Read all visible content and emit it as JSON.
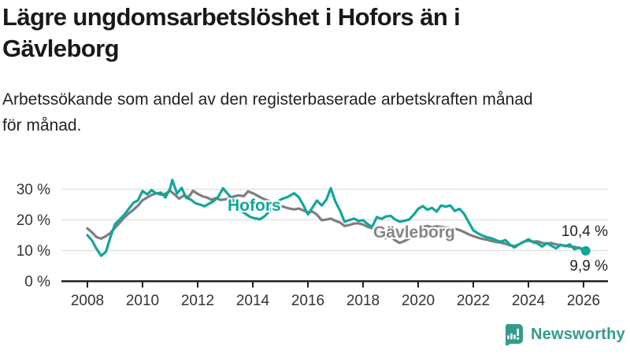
{
  "header": {
    "title": "Lägre ungdomsarbetslöshet i Hofors än i\nGävleborg",
    "subtitle": "Arbetssökande som andel av den registerbaserade arbetskraften månad\nför månad."
  },
  "chart_data": {
    "type": "line",
    "title": "Lägre ungdomsarbetslöshet i Hofors än i Gävleborg",
    "xlabel": "",
    "ylabel": "Arbetssökande som andel av den registerbaserade arbetskraften",
    "unit": "%",
    "grid": true,
    "x_start": 2008,
    "x_end": 2026.1,
    "ylim": [
      0,
      35
    ],
    "y_ticks": [
      0,
      10,
      20,
      30
    ],
    "y_tick_suffix": " %",
    "x_ticks": [
      2008,
      2010,
      2012,
      2014,
      2016,
      2018,
      2020,
      2022,
      2024,
      2026
    ],
    "series": [
      {
        "name": "Gävleborg",
        "color": "#7e7e7e",
        "end_dot": false,
        "last_value_label": "10,4 %",
        "points": [
          [
            2008.0,
            17.2
          ],
          [
            2008.17,
            15.9
          ],
          [
            2008.33,
            14.4
          ],
          [
            2008.5,
            13.9
          ],
          [
            2008.67,
            14.7
          ],
          [
            2008.83,
            15.7
          ],
          [
            2009.0,
            17.4
          ],
          [
            2009.17,
            19.1
          ],
          [
            2009.33,
            20.7
          ],
          [
            2009.5,
            22.1
          ],
          [
            2009.67,
            23.3
          ],
          [
            2009.83,
            24.6
          ],
          [
            2010.0,
            26.4
          ],
          [
            2010.17,
            27.3
          ],
          [
            2010.33,
            28.1
          ],
          [
            2010.5,
            28.7
          ],
          [
            2010.67,
            28.2
          ],
          [
            2010.83,
            28.5
          ],
          [
            2011.0,
            29.5
          ],
          [
            2011.17,
            28.2
          ],
          [
            2011.33,
            26.9
          ],
          [
            2011.5,
            28.0
          ],
          [
            2011.67,
            27.4
          ],
          [
            2011.83,
            29.5
          ],
          [
            2012.0,
            28.5
          ],
          [
            2012.17,
            27.7
          ],
          [
            2012.33,
            27.3
          ],
          [
            2012.5,
            26.6
          ],
          [
            2012.67,
            27.1
          ],
          [
            2012.83,
            26.5
          ],
          [
            2013.0,
            26.7
          ],
          [
            2013.17,
            27.1
          ],
          [
            2013.33,
            27.7
          ],
          [
            2013.5,
            28.0
          ],
          [
            2013.67,
            27.7
          ],
          [
            2013.83,
            29.3
          ],
          [
            2014.0,
            28.7
          ],
          [
            2014.17,
            27.9
          ],
          [
            2014.33,
            27.1
          ],
          [
            2014.5,
            26.5
          ],
          [
            2014.67,
            25.9
          ],
          [
            2014.83,
            25.3
          ],
          [
            2015.0,
            24.6
          ],
          [
            2015.17,
            24.1
          ],
          [
            2015.33,
            23.7
          ],
          [
            2015.5,
            23.4
          ],
          [
            2015.67,
            23.7
          ],
          [
            2015.83,
            23.1
          ],
          [
            2016.0,
            22.4
          ],
          [
            2016.17,
            22.7
          ],
          [
            2016.33,
            21.7
          ],
          [
            2016.5,
            19.9
          ],
          [
            2016.67,
            20.1
          ],
          [
            2016.83,
            20.4
          ],
          [
            2017.0,
            19.7
          ],
          [
            2017.17,
            19.1
          ],
          [
            2017.33,
            18.0
          ],
          [
            2017.5,
            18.3
          ],
          [
            2017.67,
            18.8
          ],
          [
            2017.83,
            18.9
          ],
          [
            2018.0,
            18.5
          ],
          [
            2018.17,
            17.7
          ],
          [
            2018.33,
            17.3
          ],
          [
            2018.5,
            16.3
          ],
          [
            2018.67,
            14.9
          ],
          [
            2018.83,
            14.0
          ],
          [
            2019.0,
            14.5
          ],
          [
            2019.17,
            13.3
          ],
          [
            2019.33,
            12.5
          ],
          [
            2019.5,
            13.1
          ],
          [
            2019.67,
            13.9
          ],
          [
            2019.83,
            15.3
          ],
          [
            2020.0,
            16.7
          ],
          [
            2020.17,
            17.7
          ],
          [
            2020.33,
            18.0
          ],
          [
            2020.5,
            17.6
          ],
          [
            2020.67,
            17.9
          ],
          [
            2020.83,
            17.7
          ],
          [
            2021.0,
            17.5
          ],
          [
            2021.17,
            17.3
          ],
          [
            2021.33,
            17.1
          ],
          [
            2021.5,
            16.7
          ],
          [
            2021.67,
            16.0
          ],
          [
            2021.83,
            15.3
          ],
          [
            2022.0,
            14.7
          ],
          [
            2022.17,
            14.2
          ],
          [
            2022.33,
            13.8
          ],
          [
            2022.5,
            13.5
          ],
          [
            2022.67,
            13.1
          ],
          [
            2022.83,
            12.8
          ],
          [
            2023.0,
            12.6
          ],
          [
            2023.17,
            12.2
          ],
          [
            2023.33,
            11.7
          ],
          [
            2023.5,
            11.5
          ],
          [
            2023.67,
            12.1
          ],
          [
            2023.83,
            12.9
          ],
          [
            2024.0,
            13.2
          ],
          [
            2024.17,
            12.9
          ],
          [
            2024.33,
            13.0
          ],
          [
            2024.5,
            12.5
          ],
          [
            2024.67,
            12.3
          ],
          [
            2024.83,
            12.5
          ],
          [
            2025.0,
            12.0
          ],
          [
            2025.17,
            11.8
          ],
          [
            2025.33,
            11.6
          ],
          [
            2025.5,
            11.3
          ],
          [
            2025.67,
            11.2
          ],
          [
            2025.83,
            10.8
          ],
          [
            2026.08,
            10.4
          ]
        ]
      },
      {
        "name": "Hofors",
        "color": "#11a69b",
        "end_dot": true,
        "last_value_label": "9,9 %",
        "points": [
          [
            2008.0,
            15.0
          ],
          [
            2008.17,
            13.2
          ],
          [
            2008.33,
            10.6
          ],
          [
            2008.5,
            8.3
          ],
          [
            2008.67,
            9.6
          ],
          [
            2008.83,
            14.2
          ],
          [
            2009.0,
            18.6
          ],
          [
            2009.17,
            20.1
          ],
          [
            2009.33,
            21.6
          ],
          [
            2009.5,
            23.6
          ],
          [
            2009.67,
            25.6
          ],
          [
            2009.83,
            26.3
          ],
          [
            2010.0,
            29.4
          ],
          [
            2010.17,
            28.3
          ],
          [
            2010.33,
            29.7
          ],
          [
            2010.5,
            28.6
          ],
          [
            2010.67,
            28.9
          ],
          [
            2010.83,
            27.3
          ],
          [
            2011.0,
            30.2
          ],
          [
            2011.08,
            33.0
          ],
          [
            2011.25,
            28.6
          ],
          [
            2011.42,
            30.4
          ],
          [
            2011.58,
            27.2
          ],
          [
            2011.75,
            26.6
          ],
          [
            2011.92,
            25.4
          ],
          [
            2012.08,
            25.0
          ],
          [
            2012.25,
            24.4
          ],
          [
            2012.42,
            25.3
          ],
          [
            2012.58,
            26.1
          ],
          [
            2012.75,
            27.6
          ],
          [
            2012.92,
            30.3
          ],
          [
            2013.08,
            28.6
          ],
          [
            2013.25,
            26.9
          ],
          [
            2013.42,
            24.4
          ],
          [
            2013.58,
            22.9
          ],
          [
            2013.75,
            21.9
          ],
          [
            2013.92,
            20.9
          ],
          [
            2014.08,
            20.5
          ],
          [
            2014.25,
            20.2
          ],
          [
            2014.42,
            21.1
          ],
          [
            2014.58,
            22.6
          ],
          [
            2014.75,
            24.6
          ],
          [
            2014.92,
            26.1
          ],
          [
            2015.08,
            26.9
          ],
          [
            2015.25,
            27.4
          ],
          [
            2015.5,
            28.7
          ],
          [
            2015.67,
            27.4
          ],
          [
            2015.83,
            24.9
          ],
          [
            2016.0,
            21.8
          ],
          [
            2016.17,
            24.1
          ],
          [
            2016.33,
            26.3
          ],
          [
            2016.5,
            24.7
          ],
          [
            2016.67,
            26.6
          ],
          [
            2016.83,
            30.3
          ],
          [
            2017.0,
            25.9
          ],
          [
            2017.17,
            22.9
          ],
          [
            2017.33,
            19.4
          ],
          [
            2017.5,
            19.9
          ],
          [
            2017.67,
            20.4
          ],
          [
            2017.83,
            19.7
          ],
          [
            2018.0,
            19.9
          ],
          [
            2018.17,
            18.6
          ],
          [
            2018.33,
            17.7
          ],
          [
            2018.5,
            20.9
          ],
          [
            2018.67,
            20.3
          ],
          [
            2018.83,
            21.1
          ],
          [
            2019.0,
            21.3
          ],
          [
            2019.17,
            20.1
          ],
          [
            2019.33,
            19.4
          ],
          [
            2019.5,
            19.7
          ],
          [
            2019.67,
            20.1
          ],
          [
            2019.83,
            21.6
          ],
          [
            2020.0,
            23.6
          ],
          [
            2020.17,
            24.5
          ],
          [
            2020.33,
            23.3
          ],
          [
            2020.5,
            23.9
          ],
          [
            2020.67,
            22.7
          ],
          [
            2020.83,
            24.7
          ],
          [
            2021.0,
            24.3
          ],
          [
            2021.17,
            24.7
          ],
          [
            2021.33,
            22.9
          ],
          [
            2021.5,
            23.6
          ],
          [
            2021.67,
            21.9
          ],
          [
            2021.83,
            19.3
          ],
          [
            2022.0,
            16.6
          ],
          [
            2022.17,
            15.6
          ],
          [
            2022.33,
            14.9
          ],
          [
            2022.5,
            14.3
          ],
          [
            2022.67,
            14.0
          ],
          [
            2022.83,
            13.3
          ],
          [
            2023.0,
            12.9
          ],
          [
            2023.17,
            13.4
          ],
          [
            2023.33,
            11.9
          ],
          [
            2023.5,
            11.0
          ],
          [
            2023.67,
            12.1
          ],
          [
            2023.83,
            12.8
          ],
          [
            2024.0,
            13.7
          ],
          [
            2024.17,
            12.7
          ],
          [
            2024.33,
            12.3
          ],
          [
            2024.5,
            11.3
          ],
          [
            2024.67,
            12.4
          ],
          [
            2024.83,
            11.6
          ],
          [
            2025.0,
            10.7
          ],
          [
            2025.17,
            11.9
          ],
          [
            2025.33,
            11.4
          ],
          [
            2025.5,
            12.0
          ],
          [
            2025.67,
            10.4
          ],
          [
            2025.83,
            11.0
          ],
          [
            2026.0,
            10.1
          ],
          [
            2026.08,
            9.9
          ]
        ]
      }
    ],
    "end_labels": {
      "gavleborg": "10,4 %",
      "hofors": "9,9 %"
    },
    "legend_position": "inline-labels"
  },
  "footer": {
    "brand": "Newsworthy"
  },
  "colors": {
    "accent_teal": "#11a69b",
    "series_gray": "#7e7e7e",
    "brand_teal": "#359a8c",
    "gridline": "#e2e2e2",
    "axis": "#1f1f1f",
    "text": "#191919"
  }
}
